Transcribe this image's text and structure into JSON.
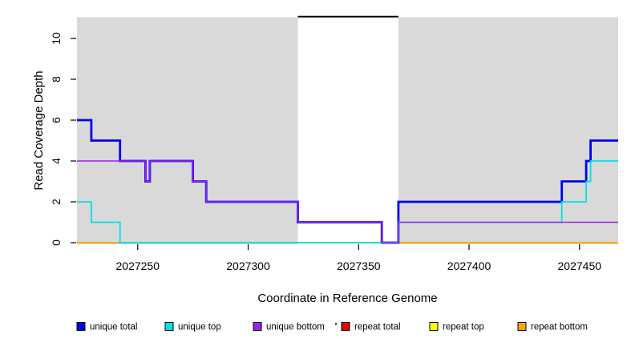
{
  "figure": {
    "background": "#ffffff",
    "panel_background": "#d9d9d9"
  },
  "chart_data": {
    "type": "line",
    "step": true,
    "title": "",
    "xlabel": "Coordinate in Reference Genome",
    "ylabel": "Read Coverage Depth",
    "xlim": [
      2027222.5,
      2027467.5
    ],
    "ylim": [
      0,
      11.04
    ],
    "x_ticks": [
      2027250,
      2027300,
      2027350,
      2027400,
      2027450
    ],
    "y_ticks": [
      0,
      2,
      4,
      6,
      8,
      10
    ],
    "grid": "off",
    "panel_fill": "#d9d9d9",
    "highlight_region": {
      "x_start": 2027322.5,
      "x_end": 2027368,
      "fill": "#ffffff",
      "top_border_color": "#000000"
    },
    "series": [
      {
        "name": "repeat total",
        "color": "#dd0000",
        "width": 1.8,
        "points": [
          [
            2027222.5,
            0
          ],
          [
            2027467.5,
            0
          ]
        ]
      },
      {
        "name": "repeat top",
        "color": "#ffff00",
        "width": 1.8,
        "points": [
          [
            2027222.5,
            0
          ],
          [
            2027467.5,
            0
          ]
        ]
      },
      {
        "name": "repeat bottom",
        "color": "#ffa500",
        "width": 1.8,
        "points": [
          [
            2027222.5,
            0
          ],
          [
            2027467.5,
            0
          ]
        ]
      },
      {
        "name": "unique total",
        "color": "#0000f0",
        "width": 2.8,
        "points": [
          [
            2027222.5,
            6
          ],
          [
            2027229,
            5
          ],
          [
            2027242,
            4
          ],
          [
            2027253.5,
            3
          ],
          [
            2027255.5,
            4
          ],
          [
            2027275,
            3
          ],
          [
            2027281,
            2
          ],
          [
            2027322.5,
            1
          ],
          [
            2027360.5,
            0
          ],
          [
            2027368,
            2
          ],
          [
            2027442,
            3
          ],
          [
            2027453,
            4
          ],
          [
            2027455,
            5
          ],
          [
            2027467.5,
            5
          ]
        ]
      },
      {
        "name": "unique top",
        "color": "#00e0e6",
        "width": 1.8,
        "points": [
          [
            2027222.5,
            2
          ],
          [
            2027229,
            1
          ],
          [
            2027242,
            0
          ],
          [
            2027368,
            1
          ],
          [
            2027442,
            2
          ],
          [
            2027453,
            3
          ],
          [
            2027455,
            4
          ],
          [
            2027467.5,
            4
          ]
        ]
      },
      {
        "name": "unique bottom",
        "color": "#a020f0",
        "width": 1.5,
        "points": [
          [
            2027222.5,
            4
          ],
          [
            2027253.5,
            3
          ],
          [
            2027255.5,
            4
          ],
          [
            2027275,
            3
          ],
          [
            2027281,
            2
          ],
          [
            2027322.5,
            1
          ],
          [
            2027360.5,
            0
          ],
          [
            2027368,
            1
          ],
          [
            2027467.5,
            1
          ]
        ]
      }
    ],
    "legend": {
      "position": "bottom",
      "items": [
        {
          "label": "unique total",
          "color": "#0000f0"
        },
        {
          "label": "unique top",
          "color": "#00e0e6"
        },
        {
          "label": "unique bottom",
          "color": "#a020f0"
        },
        {
          "label": "repeat total",
          "color": "#ee0000"
        },
        {
          "label": "repeat top",
          "color": "#ffff00"
        },
        {
          "label": "repeat bottom",
          "color": "#ffa500"
        }
      ]
    }
  }
}
